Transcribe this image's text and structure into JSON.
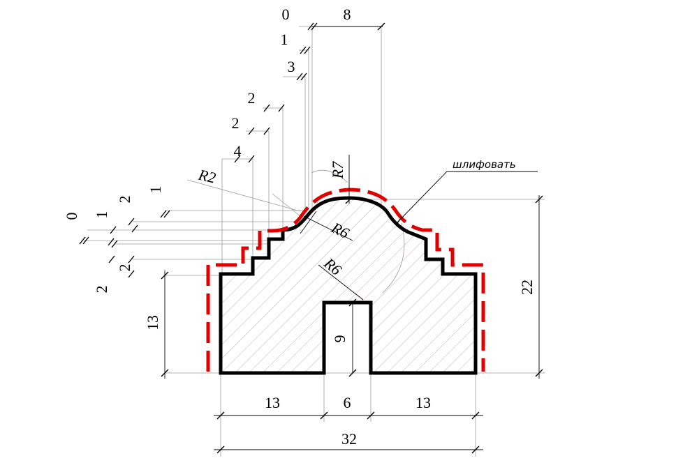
{
  "profile_dims": {
    "base_left": "13",
    "groove_width": "6",
    "base_right": "13",
    "total_width": "32",
    "left_height": "13",
    "total_height": "22",
    "groove_depth": "9"
  },
  "stack_top": [
    "0",
    "8",
    "1",
    "3",
    "2",
    "2",
    "4"
  ],
  "stack_left": [
    "0",
    "1",
    "2",
    "1",
    "2",
    "2"
  ],
  "radii": {
    "r7": "R7",
    "r6_upper": "R6",
    "r6_lower": "R6",
    "r2": "R2"
  },
  "note": "шлифовать",
  "colors": {
    "outline": "#000000",
    "finish_contour": "#e00000",
    "hatch": "#c8a9a9"
  }
}
